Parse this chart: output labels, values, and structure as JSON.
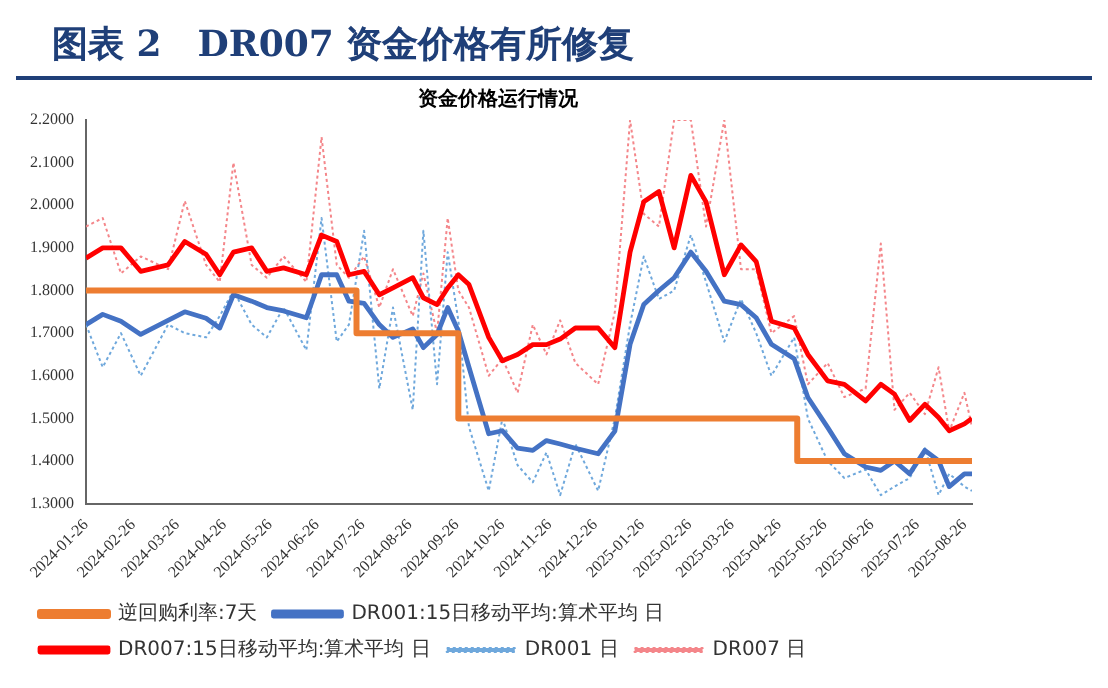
{
  "chart_data": {
    "type": "line",
    "title": "图表 2　DR007 资金价格有所修复",
    "subtitle": "资金价格运行情况",
    "x": [
      "2024-01-26",
      "2024-02-06",
      "2024-02-18",
      "2024-03-02",
      "2024-03-20",
      "2024-03-31",
      "2024-04-14",
      "2024-04-23",
      "2024-05-02",
      "2024-05-14",
      "2024-05-24",
      "2024-06-04",
      "2024-06-19",
      "2024-06-29",
      "2024-07-09",
      "2024-07-17",
      "2024-07-27",
      "2024-08-06",
      "2024-08-15",
      "2024-08-28",
      "2024-09-04",
      "2024-09-13",
      "2024-09-20",
      "2024-09-27",
      "2024-10-04",
      "2024-10-17",
      "2024-10-26",
      "2024-11-05",
      "2024-11-15",
      "2024-11-24",
      "2024-12-03",
      "2024-12-13",
      "2024-12-28",
      "2025-01-08",
      "2025-01-18",
      "2025-01-27",
      "2025-02-06",
      "2025-02-16",
      "2025-02-27",
      "2025-03-09",
      "2025-03-21",
      "2025-04-01",
      "2025-04-11",
      "2025-04-21",
      "2025-05-06",
      "2025-05-15",
      "2025-05-28",
      "2025-06-08",
      "2025-06-22",
      "2025-07-02",
      "2025-07-11",
      "2025-07-21",
      "2025-07-31",
      "2025-08-09",
      "2025-08-16",
      "2025-08-26",
      "2025-08-31"
    ],
    "series": [
      {
        "name": "DR007 日",
        "color": "#f4868a",
        "line_style": "dotted",
        "values": [
          1.95,
          1.97,
          1.84,
          1.88,
          1.85,
          2.01,
          1.86,
          1.82,
          2.1,
          1.86,
          1.83,
          1.88,
          1.82,
          2.16,
          1.86,
          1.83,
          1.88,
          1.76,
          1.85,
          1.74,
          1.84,
          1.7,
          1.97,
          1.8,
          1.76,
          1.6,
          1.64,
          1.56,
          1.72,
          1.65,
          1.73,
          1.63,
          1.58,
          1.75,
          2.2,
          1.98,
          1.95,
          2.2,
          2.2,
          1.95,
          2.2,
          1.85,
          1.85,
          1.7,
          1.74,
          1.58,
          1.63,
          1.55,
          1.57,
          1.91,
          1.52,
          1.56,
          1.51,
          1.62,
          1.47,
          1.56,
          1.48
        ]
      },
      {
        "name": "DR001 日",
        "color": "#6fa8dc",
        "line_style": "dotted",
        "values": [
          1.72,
          1.62,
          1.7,
          1.6,
          1.72,
          1.7,
          1.69,
          1.74,
          1.8,
          1.72,
          1.69,
          1.76,
          1.66,
          1.97,
          1.68,
          1.72,
          1.94,
          1.57,
          1.76,
          1.52,
          1.94,
          1.58,
          1.89,
          1.73,
          1.48,
          1.33,
          1.5,
          1.39,
          1.35,
          1.42,
          1.32,
          1.44,
          1.33,
          1.5,
          1.72,
          1.88,
          1.78,
          1.8,
          1.93,
          1.82,
          1.68,
          1.78,
          1.7,
          1.6,
          1.69,
          1.5,
          1.4,
          1.36,
          1.38,
          1.32,
          1.34,
          1.36,
          1.43,
          1.32,
          1.37,
          1.34,
          1.33
        ]
      },
      {
        "name": "DR007:15日移动平均:算术平均 日",
        "color": "#ff0000",
        "line_style": "solid",
        "values": [
          1.876,
          1.9,
          1.9,
          1.845,
          1.86,
          1.915,
          1.885,
          1.837,
          1.89,
          1.9,
          1.845,
          1.853,
          1.837,
          1.93,
          1.915,
          1.837,
          1.845,
          1.79,
          1.806,
          1.83,
          1.783,
          1.767,
          1.806,
          1.837,
          1.814,
          1.69,
          1.635,
          1.65,
          1.673,
          1.673,
          1.686,
          1.712,
          1.712,
          1.666,
          1.89,
          2.008,
          2.032,
          1.9,
          2.07,
          2.008,
          1.837,
          1.907,
          1.868,
          1.728,
          1.712,
          1.65,
          1.588,
          1.58,
          1.541,
          1.58,
          1.557,
          1.495,
          1.533,
          1.502,
          1.471,
          1.487,
          1.5
        ]
      },
      {
        "name": "DR001:15日移动平均:算术平均 日",
        "color": "#4472c4",
        "line_style": "solid",
        "values": [
          1.72,
          1.744,
          1.728,
          1.697,
          1.73,
          1.75,
          1.735,
          1.712,
          1.79,
          1.775,
          1.76,
          1.752,
          1.736,
          1.837,
          1.837,
          1.775,
          1.77,
          1.72,
          1.69,
          1.71,
          1.666,
          1.697,
          1.76,
          1.705,
          1.62,
          1.464,
          1.471,
          1.43,
          1.425,
          1.448,
          1.44,
          1.43,
          1.417,
          1.47,
          1.674,
          1.767,
          1.8,
          1.83,
          1.89,
          1.845,
          1.775,
          1.767,
          1.736,
          1.674,
          1.64,
          1.549,
          1.479,
          1.417,
          1.386,
          1.378,
          1.4,
          1.37,
          1.425,
          1.401,
          1.34,
          1.37,
          1.37
        ]
      },
      {
        "name": "逆回购利率:7天",
        "type": "step",
        "color": "#ed7d31",
        "line_style": "solid",
        "x": [
          "2024-01-26",
          "2024-07-22",
          "2024-09-27",
          "2025-05-08",
          "2025-08-31"
        ],
        "values": [
          1.8,
          1.7,
          1.5,
          1.4,
          1.4
        ]
      }
    ],
    "xlim": [
      "2024-01-26",
      "2025-08-31"
    ],
    "xticks": [
      "2024-01-26",
      "2024-02-26",
      "2024-03-26",
      "2024-04-26",
      "2024-05-26",
      "2024-06-26",
      "2024-07-26",
      "2024-08-26",
      "2024-09-26",
      "2024-10-26",
      "2024-11-26",
      "2024-12-26",
      "2025-01-26",
      "2025-02-26",
      "2025-03-26",
      "2025-04-26",
      "2025-05-26",
      "2025-06-26",
      "2025-07-26",
      "2025-08-26"
    ],
    "ylim": [
      1.3,
      2.2
    ],
    "yticks": [
      {
        "value": 1.3,
        "label": "1.3000"
      },
      {
        "value": 1.4,
        "label": "1.4000"
      },
      {
        "value": 1.5,
        "label": "1.5000"
      },
      {
        "value": 1.6,
        "label": "1.6000"
      },
      {
        "value": 1.7,
        "label": "1.7000"
      },
      {
        "value": 1.8,
        "label": "1.8000"
      },
      {
        "value": 1.9,
        "label": "1.9000"
      },
      {
        "value": 2.0,
        "label": "2.0000"
      },
      {
        "value": 2.1,
        "label": "2.1000"
      },
      {
        "value": 2.2,
        "label": "2.2000"
      }
    ],
    "grid": false,
    "legend": "bottom",
    "marker": "none"
  }
}
